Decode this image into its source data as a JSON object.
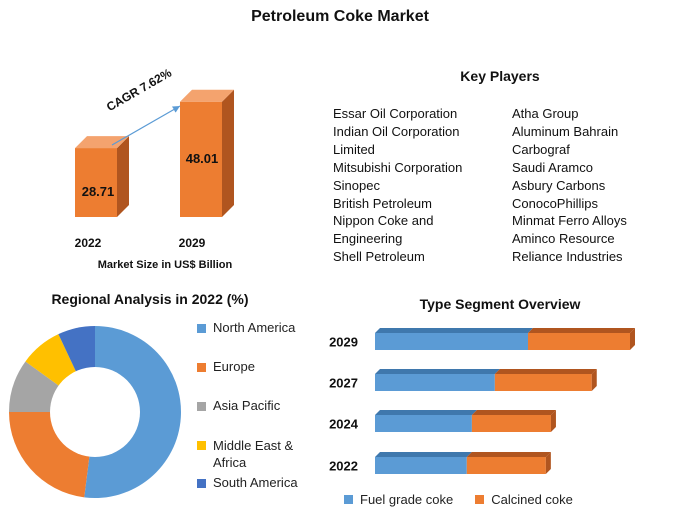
{
  "title": "Petroleum Coke Market",
  "market_size": {
    "years": [
      "2022",
      "2029"
    ],
    "values": [
      "28.71",
      "48.01"
    ],
    "cagr": "CAGR 7.62%",
    "caption": "Market Size in US$ Billion",
    "colors": {
      "front": "#ed7d31",
      "side": "#b0551f",
      "top": "#f4a36e"
    }
  },
  "key_players": {
    "title": "Key Players",
    "col1": [
      "Essar Oil Corporation",
      "Indian Oil Corporation",
      "Limited",
      "Mitsubishi Corporation",
      "Sinopec",
      "British Petroleum",
      "Nippon Coke and",
      "Engineering",
      "Shell Petroleum"
    ],
    "col2": [
      "Atha Group",
      "Aluminum Bahrain",
      "Carbograf",
      "Saudi Aramco",
      "Asbury Carbons",
      "ConocoPhillips",
      "Minmat Ferro Alloys",
      "Aminco Resource",
      "Reliance Industries"
    ]
  },
  "regional": {
    "title": "Regional Analysis in 2022 (%)",
    "legend": [
      {
        "label": "North America",
        "color": "#5b9bd5"
      },
      {
        "label": "Europe",
        "color": "#ed7d31"
      },
      {
        "label": "Asia Pacific",
        "color": "#a5a5a5"
      },
      {
        "label": "Middle East &",
        "label2": "Africa",
        "color": "#ffc000"
      },
      {
        "label": "South America",
        "color": "#4472c4"
      }
    ]
  },
  "type_segment": {
    "title": "Type Segment Overview",
    "legend": [
      {
        "label": "Fuel grade coke",
        "color": "#5b9bd5"
      },
      {
        "label": "Calcined coke",
        "color": "#ed7d31"
      }
    ]
  },
  "chart_data": [
    {
      "type": "bar",
      "title": "",
      "xlabel": "Market Size in US$ Billion",
      "categories": [
        "2022",
        "2029"
      ],
      "values": [
        28.71,
        48.01
      ],
      "annotation": "CAGR 7.62%"
    },
    {
      "type": "pie",
      "title": "Regional Analysis in 2022 (%)",
      "categories": [
        "North America",
        "Europe",
        "Asia Pacific",
        "Middle East & Africa",
        "South America"
      ],
      "values": [
        52,
        23,
        10,
        8,
        7
      ]
    },
    {
      "type": "bar",
      "orientation": "horizontal",
      "stacked": true,
      "title": "Type Segment Overview",
      "categories": [
        "2029",
        "2027",
        "2024",
        "2022"
      ],
      "series": [
        {
          "name": "Fuel grade coke",
          "values": [
            60,
            47,
            38,
            36
          ]
        },
        {
          "name": "Calcined coke",
          "values": [
            40,
            38,
            31,
            31
          ]
        }
      ]
    }
  ]
}
